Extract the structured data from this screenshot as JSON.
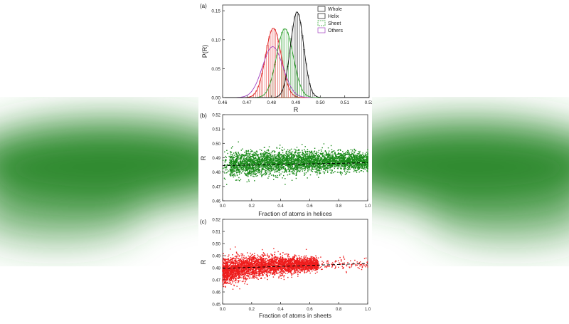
{
  "background": {
    "color": "#2f8a2f"
  },
  "chart_data": [
    {
      "type": "line",
      "panel_label": "(a)",
      "xlabel": "R",
      "ylabel": "P(R)",
      "xlim": [
        0.46,
        0.52
      ],
      "ylim": [
        0,
        0.16
      ],
      "xticks": [
        0.46,
        0.47,
        0.48,
        0.49,
        0.5,
        0.51,
        0.52
      ],
      "yticks": [
        0,
        0.05,
        0.1,
        0.15
      ],
      "xtick_labels": [
        "0.46",
        "0.47",
        "0.48",
        "0.49",
        "0.50",
        "0.51",
        "0.52"
      ],
      "ytick_labels": [
        "0.00",
        "0.05",
        "0.10",
        "0.15"
      ],
      "legend_position": "top-right",
      "series": [
        {
          "name": "Whole",
          "color": "#111111",
          "mean": 0.4905,
          "sd": 0.0027,
          "peak": 0.148
        },
        {
          "name": "Helix",
          "color": "#1a1a1a",
          "mean": 0.4905,
          "sd": 0.0027,
          "peak": 0.148
        },
        {
          "name": "Sheet",
          "color": "#2ca02c",
          "mean": 0.4855,
          "sd": 0.0034,
          "peak": 0.119
        },
        {
          "name": "Others",
          "color": "#a040c0",
          "mean": 0.4805,
          "sd": 0.0042,
          "peak": 0.088
        }
      ],
      "extra_curves": [
        {
          "color": "#e02020",
          "mean": 0.4808,
          "sd": 0.0032,
          "peak": 0.12
        }
      ]
    },
    {
      "type": "scatter",
      "panel_label": "(b)",
      "xlabel": "Fraction of atoms in helices",
      "ylabel": "R",
      "xlim": [
        0.0,
        1.0
      ],
      "ylim": [
        0.46,
        0.52
      ],
      "xticks": [
        0,
        0.2,
        0.4,
        0.6,
        0.8,
        1.0
      ],
      "yticks": [
        0.46,
        0.47,
        0.48,
        0.49,
        0.5,
        0.51,
        0.52
      ],
      "xtick_labels": [
        "0.0",
        "0.2",
        "0.4",
        "0.6",
        "0.8",
        "1.0"
      ],
      "ytick_labels": [
        "0.46",
        "0.47",
        "0.48",
        "0.49",
        "0.50",
        "0.51",
        "0.52"
      ],
      "color": "#1a8a1a",
      "fit_line": {
        "x": [
          0.0,
          1.0
        ],
        "y": [
          0.4845,
          0.4865
        ]
      }
    },
    {
      "type": "scatter",
      "panel_label": "(c)",
      "xlabel": "Fraction of atoms in sheets",
      "ylabel": "R",
      "xlim": [
        0.0,
        1.0
      ],
      "ylim": [
        0.45,
        0.52
      ],
      "xticks": [
        0,
        0.2,
        0.4,
        0.6,
        0.8,
        1.0
      ],
      "yticks": [
        0.45,
        0.46,
        0.47,
        0.48,
        0.49,
        0.5,
        0.51,
        0.52
      ],
      "xtick_labels": [
        "0.0",
        "0.2",
        "0.4",
        "0.6",
        "0.8",
        "1.0"
      ],
      "ytick_labels": [
        "0.45",
        "0.46",
        "0.47",
        "0.48",
        "0.49",
        "0.50",
        "0.51",
        "0.52"
      ],
      "color": "#ee1c1c",
      "fit_line": {
        "x": [
          0.0,
          1.0
        ],
        "y": [
          0.4795,
          0.4835
        ]
      }
    }
  ]
}
